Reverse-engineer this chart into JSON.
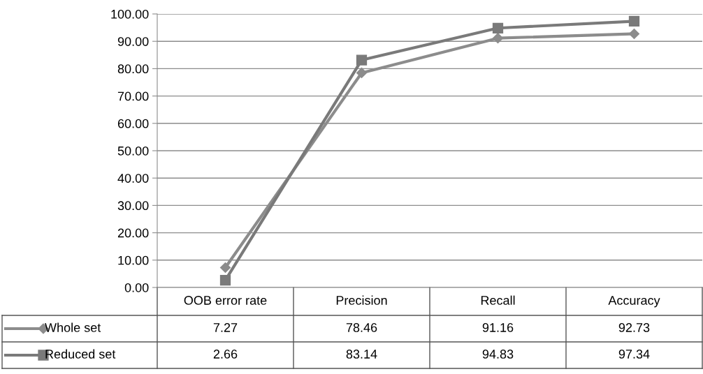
{
  "chart_data": {
    "type": "line",
    "categories": [
      "OOB error rate",
      "Precision",
      "Recall",
      "Accuracy"
    ],
    "series": [
      {
        "name": "Whole set",
        "color": "#8c8c8c",
        "marker": "diamond",
        "values": [
          7.27,
          78.46,
          91.16,
          92.73
        ]
      },
      {
        "name": "Reduced set",
        "color": "#7a7a7a",
        "marker": "square",
        "values": [
          2.66,
          83.14,
          94.83,
          97.34
        ]
      }
    ],
    "ylim": [
      0,
      100
    ],
    "yticks": [
      {
        "value": 0,
        "label": "0.00"
      },
      {
        "value": 10,
        "label": "10.00"
      },
      {
        "value": 20,
        "label": "20.00"
      },
      {
        "value": 30,
        "label": "30.00"
      },
      {
        "value": 40,
        "label": "40.00"
      },
      {
        "value": 50,
        "label": "50.00"
      },
      {
        "value": 60,
        "label": "60.00"
      },
      {
        "value": 70,
        "label": "70.00"
      },
      {
        "value": 80,
        "label": "80.00"
      },
      {
        "value": 90,
        "label": "90.00"
      },
      {
        "value": 100,
        "label": "100.00"
      }
    ],
    "grid": "y",
    "legend": "bottom left",
    "data_labels": true,
    "line_style": "solid"
  }
}
